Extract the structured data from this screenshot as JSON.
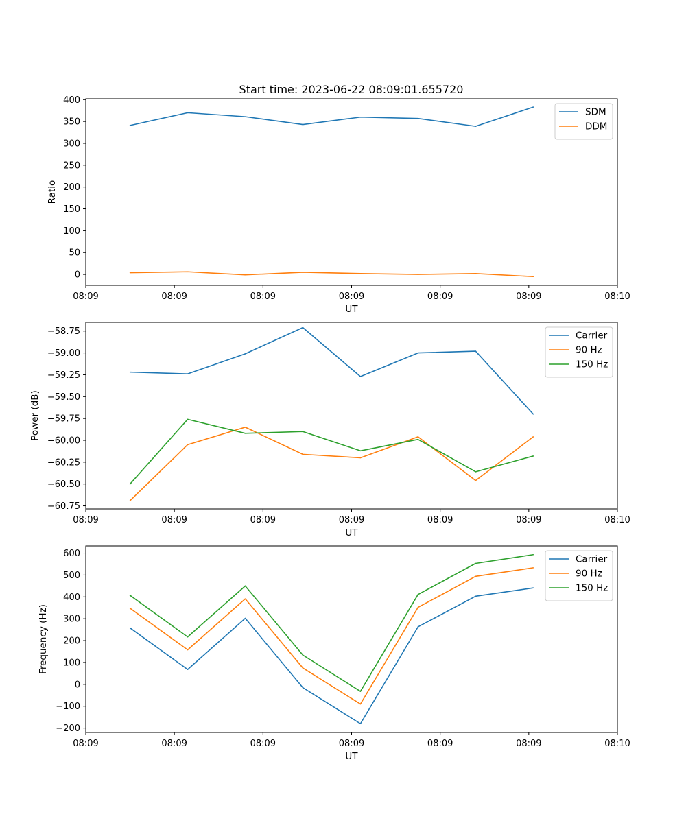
{
  "figure": {
    "title": "Start time: 2023-06-22 08:09:01.655720"
  },
  "chart_data": [
    {
      "type": "line",
      "title": "Start time: 2023-06-22 08:09:01.655720",
      "xlabel": "UT",
      "ylabel": "Ratio",
      "x_tick_labels": [
        "08:09",
        "08:09",
        "08:09",
        "08:09",
        "08:09",
        "08:09",
        "08:10"
      ],
      "xlim": [
        0,
        6
      ],
      "ylim": [
        -25,
        402
      ],
      "y_ticks": [
        0,
        50,
        100,
        150,
        200,
        250,
        300,
        350,
        400
      ],
      "y_tick_labels": [
        "0",
        "50",
        "100",
        "150",
        "200",
        "250",
        "300",
        "350",
        "400"
      ],
      "legend_position": "top-right",
      "x": [
        0.5,
        1.15,
        1.8,
        2.45,
        3.1,
        3.75,
        4.4,
        5.05
      ],
      "series": [
        {
          "name": "SDM",
          "color": "#1f77b4",
          "values": [
            341,
            370,
            361,
            343,
            360,
            357,
            339,
            383
          ]
        },
        {
          "name": "DDM",
          "color": "#ff7f0e",
          "values": [
            4,
            6,
            -1,
            5,
            2,
            0,
            2,
            -5
          ]
        }
      ]
    },
    {
      "type": "line",
      "xlabel": "UT",
      "ylabel": "Power (dB)",
      "x_tick_labels": [
        "08:09",
        "08:09",
        "08:09",
        "08:09",
        "08:09",
        "08:09",
        "08:10"
      ],
      "xlim": [
        0,
        6
      ],
      "ylim": [
        -60.785,
        -58.65
      ],
      "y_ticks": [
        -60.75,
        -60.5,
        -60.25,
        -60.0,
        -59.75,
        -59.5,
        -59.25,
        -59.0,
        -58.75
      ],
      "y_tick_labels": [
        "−60.75",
        "−60.50",
        "−60.25",
        "−60.00",
        "−59.75",
        "−59.50",
        "−59.25",
        "−59.00",
        "−58.75"
      ],
      "legend_position": "top-right",
      "x": [
        0.5,
        1.15,
        1.8,
        2.45,
        3.1,
        3.75,
        4.4,
        5.05
      ],
      "series": [
        {
          "name": "Carrier",
          "color": "#1f77b4",
          "values": [
            -59.22,
            -59.24,
            -59.01,
            -58.71,
            -59.27,
            -59.0,
            -58.98,
            -59.7
          ]
        },
        {
          "name": "90 Hz",
          "color": "#ff7f0e",
          "values": [
            -60.69,
            -60.05,
            -59.85,
            -60.16,
            -60.2,
            -59.96,
            -60.46,
            -59.96
          ]
        },
        {
          "name": "150 Hz",
          "color": "#2ca02c",
          "values": [
            -60.5,
            -59.76,
            -59.92,
            -59.9,
            -60.12,
            -59.99,
            -60.36,
            -60.18
          ]
        }
      ]
    },
    {
      "type": "line",
      "xlabel": "UT",
      "ylabel": "Frequency (Hz)",
      "x_tick_labels": [
        "08:09",
        "08:09",
        "08:09",
        "08:09",
        "08:09",
        "08:09",
        "08:10"
      ],
      "xlim": [
        0,
        6
      ],
      "ylim": [
        -220,
        633
      ],
      "y_ticks": [
        -200,
        -100,
        0,
        100,
        200,
        300,
        400,
        500,
        600
      ],
      "y_tick_labels": [
        "−200",
        "−100",
        "0",
        "100",
        "200",
        "300",
        "400",
        "500",
        "600"
      ],
      "legend_position": "top-right",
      "x": [
        0.5,
        1.15,
        1.8,
        2.45,
        3.1,
        3.75,
        4.4,
        5.05
      ],
      "series": [
        {
          "name": "Carrier",
          "color": "#1f77b4",
          "values": [
            258,
            68,
            302,
            -15,
            -180,
            263,
            403,
            441
          ]
        },
        {
          "name": "90 Hz",
          "color": "#ff7f0e",
          "values": [
            348,
            158,
            391,
            75,
            -90,
            352,
            494,
            533
          ]
        },
        {
          "name": "150 Hz",
          "color": "#2ca02c",
          "values": [
            407,
            217,
            450,
            134,
            -32,
            411,
            553,
            593
          ]
        }
      ]
    }
  ]
}
